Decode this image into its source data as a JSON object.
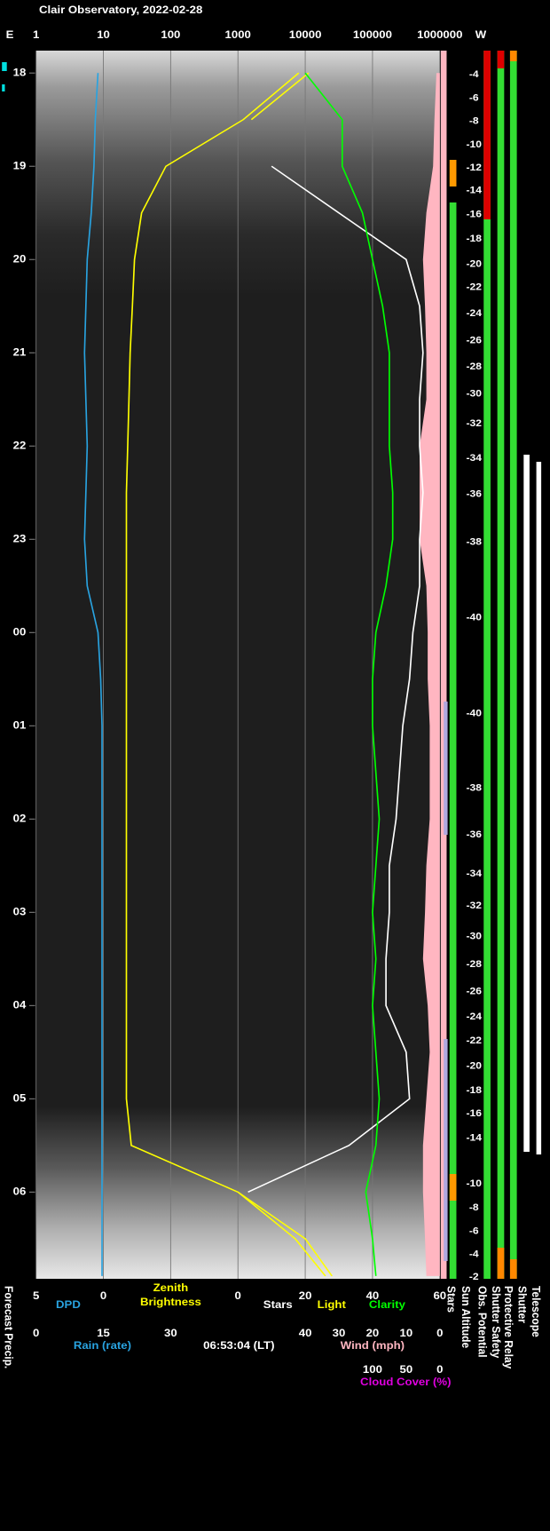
{
  "chart_data": {
    "type": "line",
    "title": "Clair Observatory, 2022-02-28",
    "east_label": "E",
    "west_label": "W",
    "timestamp": "06:53:04 (LT)",
    "ylim": [
      17.76,
      30.93
    ],
    "yticks": [
      18,
      19,
      20,
      21,
      22,
      23,
      {
        "value": 24,
        "label": "00"
      },
      {
        "value": 25,
        "label": "01"
      },
      {
        "value": 26,
        "label": "02"
      },
      {
        "value": 27,
        "label": "03"
      },
      {
        "value": 28,
        "label": "04"
      },
      {
        "value": 29,
        "label": "05"
      },
      {
        "value": 30,
        "label": "06"
      }
    ],
    "brightness_axis": {
      "xlim": [
        1,
        1000000
      ],
      "log": true,
      "xticks": [
        1,
        10,
        100,
        1000,
        10000,
        100000,
        1000000
      ],
      "grid": true
    },
    "dpd_axis": {
      "label": "DPD",
      "color": "#29a3e0",
      "xlim": [
        5,
        0
      ],
      "xticks": [
        5,
        0
      ]
    },
    "rain_axis": {
      "label": "Rain (rate)",
      "color": "#29a3e0",
      "xlim": [
        0,
        30
      ],
      "xticks": [
        0,
        15,
        30
      ]
    },
    "zenith_label": [
      "Zenith",
      "Brightness"
    ],
    "stars_axis": {
      "xlim": [
        0,
        60
      ],
      "xticks": [
        0,
        20,
        40,
        60
      ]
    },
    "wind_axis": {
      "label": "Wind (mph)",
      "color": "#ffb6c1",
      "xlim": [
        40,
        0
      ],
      "xticks": [
        40,
        30,
        20,
        10,
        0
      ]
    },
    "cloud_axis": {
      "label": "Cloud Cover (%)",
      "color": "#e000e0",
      "xlim": [
        100,
        0
      ],
      "xticks": [
        100,
        50,
        0
      ]
    },
    "times": [
      18,
      18.5,
      19,
      19.5,
      20,
      20.5,
      21,
      21.5,
      22,
      22.5,
      23,
      23.5,
      24,
      24.5,
      25,
      25.5,
      26,
      26.5,
      27,
      27.5,
      28,
      28.5,
      29,
      29.5,
      30,
      30.5,
      30.9
    ],
    "series": [
      {
        "name": "Zenith Brightness",
        "axis": "brightness_axis",
        "color": "#ffff00",
        "values": [
          8000,
          1200,
          85,
          37,
          29,
          27,
          25,
          24,
          23,
          22,
          22,
          22,
          22,
          22,
          22,
          22,
          22,
          22,
          22,
          22,
          22,
          22,
          22,
          26,
          1000,
          10000,
          25000
        ]
      },
      {
        "name": "Stars",
        "axis": "stars_axis",
        "color": "#ffffff",
        "values": [
          null,
          null,
          10,
          30,
          50,
          54,
          55,
          54,
          54,
          55,
          54,
          54,
          52,
          51,
          49,
          48,
          47,
          45,
          45,
          44,
          44,
          50,
          51,
          33,
          3,
          null,
          null
        ]
      },
      {
        "name": "Light",
        "axis": "stars_axis",
        "color": "#ffff00",
        "values": [
          21,
          4,
          null,
          null,
          null,
          null,
          null,
          null,
          null,
          null,
          null,
          null,
          null,
          null,
          null,
          null,
          null,
          null,
          null,
          null,
          null,
          null,
          null,
          null,
          0,
          17,
          26
        ]
      },
      {
        "name": "Clarity",
        "axis": "stars_axis",
        "color": "#00ff00",
        "values": [
          20,
          31,
          31,
          37,
          40,
          43,
          45,
          45,
          45,
          46,
          46,
          44,
          41,
          40,
          40,
          41,
          42,
          41,
          40,
          41,
          40,
          41,
          42,
          41,
          38,
          40,
          41
        ]
      },
      {
        "name": "DPD",
        "axis": "dpd_axis",
        "color": "#29a3e0",
        "values": [
          0.4,
          0.6,
          0.7,
          0.9,
          1.2,
          1.3,
          1.4,
          1.3,
          1.2,
          1.3,
          1.4,
          1.2,
          0.4,
          0.2,
          0.1,
          0.1,
          0.1,
          0.1,
          0.1,
          0.1,
          0.1,
          0.1,
          0.1,
          0.1,
          0.1,
          0.1,
          0.1
        ]
      },
      {
        "name": "Cloud Cover (%)",
        "axis": "cloud_axis",
        "color": "#ffb6c1",
        "area": true,
        "values": [
          5,
          8,
          10,
          20,
          25,
          22,
          20,
          20,
          30,
          30,
          30,
          20,
          18,
          18,
          15,
          15,
          15,
          20,
          22,
          25,
          18,
          15,
          20,
          25,
          25,
          22,
          20
        ]
      }
    ],
    "sun_altitude": {
      "label": "Sun Altitude",
      "times": [
        18.02,
        18.27,
        18.52,
        18.77,
        19.02,
        19.26,
        19.52,
        19.78,
        20.05,
        20.3,
        20.58,
        20.87,
        21.15,
        21.44,
        21.76,
        22.13,
        22.52,
        23.03,
        23.84,
        24.87,
        25.67,
        26.17,
        26.59,
        26.93,
        27.26,
        27.56,
        27.85,
        28.12,
        28.38,
        28.65,
        28.91,
        29.16,
        29.42,
        29.91,
        30.17,
        30.42,
        30.67,
        30.91
      ],
      "values": [
        -4,
        -6,
        -8,
        -10,
        -12,
        -14,
        -16,
        -18,
        -20,
        -22,
        -24,
        -26,
        -28,
        -30,
        -32,
        -34,
        -36,
        -38,
        -40,
        -40,
        -38,
        -36,
        -34,
        -32,
        -30,
        -28,
        -26,
        -24,
        -22,
        -20,
        -18,
        -16,
        -14,
        -10,
        -8,
        -6,
        -4,
        -2
      ]
    },
    "status_labels": [
      "Forecast Precip.",
      "Stars",
      "Obs. Potential",
      "Shutter Safety",
      "Protective Relay",
      "Shutter",
      "Telescope"
    ]
  }
}
